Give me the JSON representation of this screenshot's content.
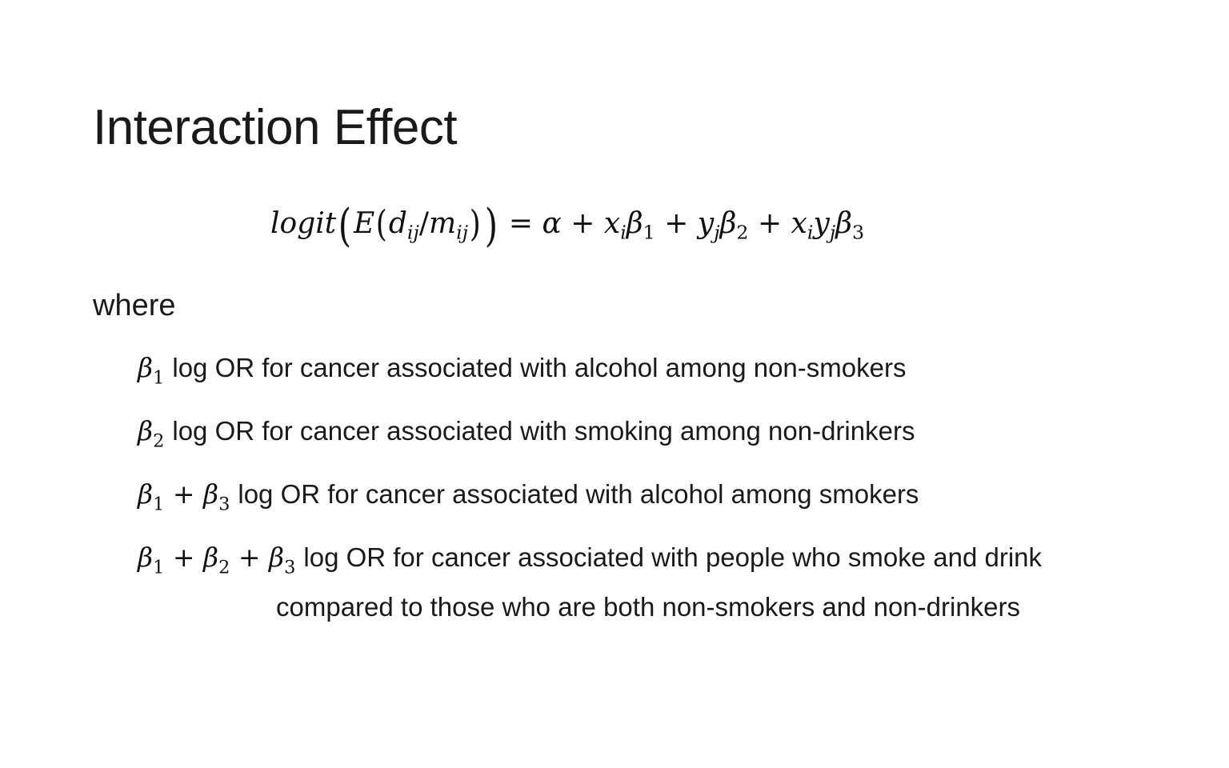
{
  "slide": {
    "title": "Interaction Effect",
    "where_label": "where"
  },
  "equation": {
    "lhs_func": "logit",
    "lhs_E": "E",
    "lhs_d": "d",
    "lhs_d_sub": "ij",
    "lhs_slash": "/",
    "lhs_m": "m",
    "lhs_m_sub": "ij",
    "equals": "=",
    "alpha": "α",
    "plus": "+",
    "x": "x",
    "x_sub": "i",
    "y": "y",
    "y_sub": "j",
    "beta": "β",
    "b1_sub": "1",
    "b2_sub": "2",
    "b3_sub": "3"
  },
  "definitions": [
    {
      "symbol_parts": [
        "1"
      ],
      "text": "log OR for cancer associated with alcohol among non-smokers"
    },
    {
      "symbol_parts": [
        "2"
      ],
      "text": "log OR for cancer associated with smoking among non-drinkers"
    },
    {
      "symbol_parts": [
        "1",
        "3"
      ],
      "text": "log OR for cancer associated with alcohol among smokers"
    },
    {
      "symbol_parts": [
        "1",
        "2",
        "3"
      ],
      "text": "log OR for cancer associated with people who smoke and drink",
      "continuation": "compared to those who are both non-smokers and non-drinkers"
    }
  ],
  "symbols": {
    "beta": "β",
    "plus": "+"
  }
}
